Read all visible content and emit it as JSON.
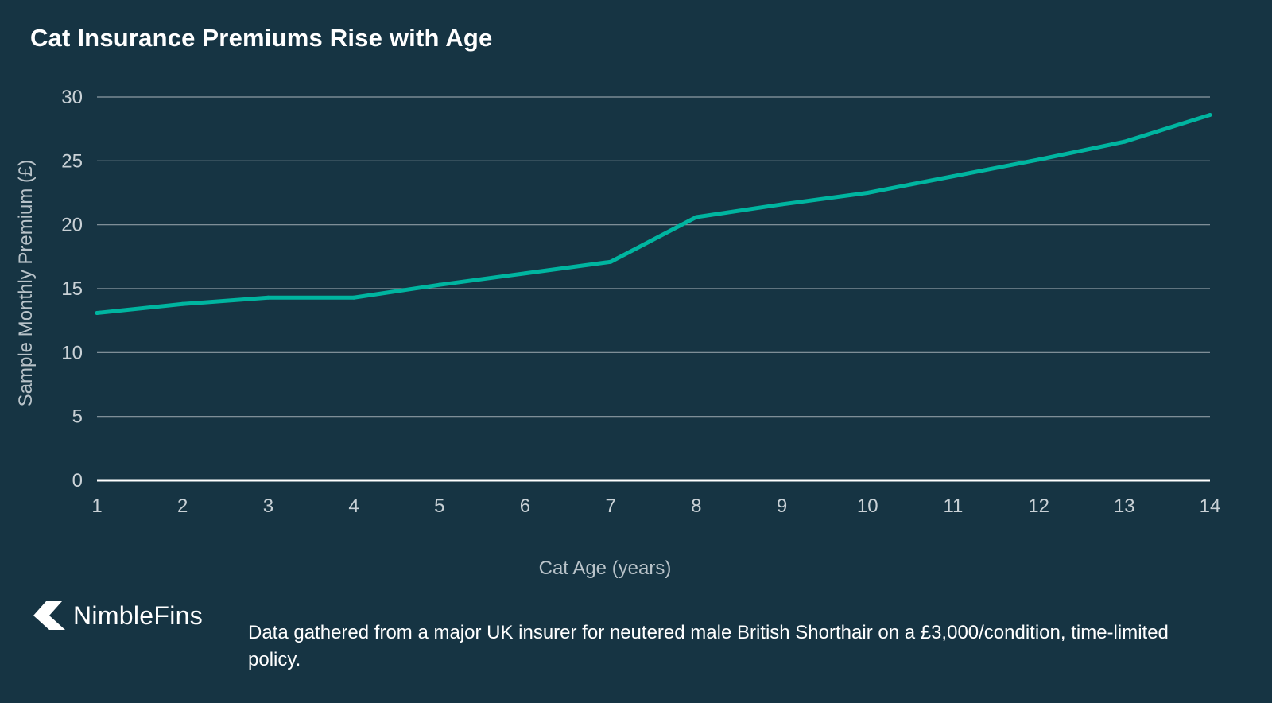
{
  "chart_data": {
    "type": "line",
    "title": "Cat Insurance Premiums Rise with Age",
    "xlabel": "Cat Age (years)",
    "ylabel": "Sample Monthly Premium (£)",
    "x": [
      1,
      2,
      3,
      4,
      5,
      6,
      7,
      8,
      9,
      10,
      11,
      12,
      13,
      14
    ],
    "series": [
      {
        "name": "Sample Monthly Premium",
        "values": [
          13.1,
          13.8,
          14.3,
          14.3,
          15.3,
          16.2,
          17.1,
          20.6,
          21.6,
          22.5,
          23.8,
          25.1,
          26.5,
          28.6
        ]
      }
    ],
    "xlim": [
      1,
      14
    ],
    "ylim": [
      0,
      30
    ],
    "yticks": [
      0,
      5,
      10,
      15,
      20,
      25,
      30
    ],
    "xticks": [
      1,
      2,
      3,
      4,
      5,
      6,
      7,
      8,
      9,
      10,
      11,
      12,
      13,
      14
    ],
    "grid": true,
    "colors": {
      "background": "#163443",
      "line": "#00b5a0",
      "grid": "#8d9ba3",
      "baseline": "#ffffff"
    }
  },
  "brand": {
    "name": "NimbleFins",
    "icon": "chevron-left-icon"
  },
  "footnote": "Data gathered from a major UK insurer for neutered male British Shorthair on a £3,000/condition, time-limited policy."
}
